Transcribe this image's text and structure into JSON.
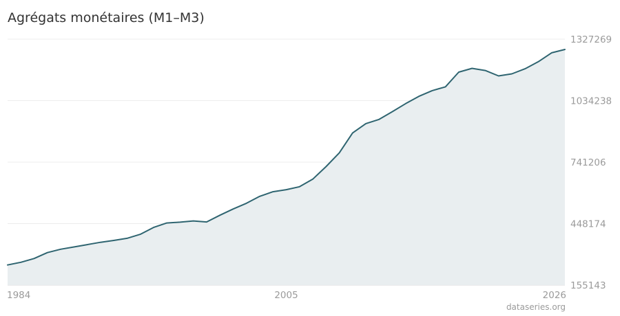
{
  "chart_data": {
    "type": "area",
    "title": "Agrégats monétaires (M1–M3)",
    "xlabel": "",
    "ylabel": "",
    "x_ticks": [
      "1984",
      "2005",
      "2026"
    ],
    "y_ticks": [
      "1327269",
      "1034238",
      "741206",
      "448174",
      "155143"
    ],
    "xlim": [
      1984,
      2026
    ],
    "ylim": [
      155143,
      1327269
    ],
    "grid": true,
    "legend": "none",
    "colors": {
      "line": "#2e6470",
      "fill": "#e9eef0",
      "grid": "#ececec",
      "text": "#9a9a9a"
    },
    "series": [
      {
        "x": [
          1984.0,
          1985.0,
          1986.0,
          1987.0,
          1988.0,
          1989.0,
          1990.0,
          1991.0,
          1992.0,
          1993.0,
          1994.0,
          1995.0,
          1996.0,
          1997.0,
          1998.0,
          1999.0,
          2000.0,
          2001.0,
          2002.0,
          2003.0,
          2004.0,
          2005.0,
          2006.0,
          2007.0,
          2008.0,
          2009.0,
          2010.0,
          2011.0,
          2012.0,
          2013.0,
          2014.0,
          2015.0,
          2016.0,
          2017.0,
          2018.0,
          2019.0,
          2020.0,
          2021.0,
          2022.0,
          2023.0,
          2024.0,
          2025.0,
          2026.0
        ],
        "values": [
          251000,
          264000,
          282000,
          310000,
          326000,
          337000,
          348000,
          359000,
          368000,
          378000,
          397000,
          430000,
          451000,
          455000,
          461000,
          456000,
          488000,
          518000,
          545000,
          578000,
          600000,
          610000,
          624000,
          660000,
          720000,
          785000,
          880000,
          925000,
          945000,
          982000,
          1020000,
          1055000,
          1082000,
          1100000,
          1170000,
          1188000,
          1178000,
          1152000,
          1162000,
          1186000,
          1220000,
          1262000,
          1278000
        ]
      }
    ]
  },
  "credit": "dataseries.org"
}
